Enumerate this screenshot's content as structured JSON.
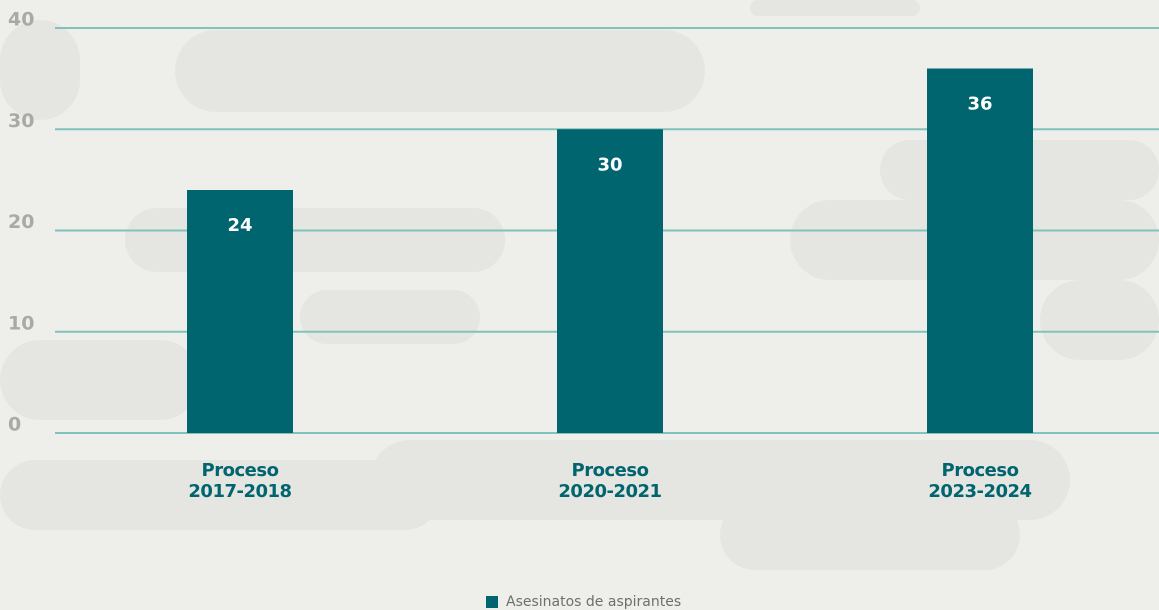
{
  "chart_data": {
    "type": "bar",
    "categories": [
      "Proceso 2017-2018",
      "Proceso 2020-2021",
      "Proceso 2023-2024"
    ],
    "series": [
      {
        "name": "Asesinatos de aspirantes",
        "color": "#00656f",
        "values": [
          24,
          30,
          36
        ]
      }
    ],
    "ylim": [
      0,
      40
    ],
    "yticks": [
      0,
      10,
      20,
      30,
      40
    ],
    "grid": true
  }
}
